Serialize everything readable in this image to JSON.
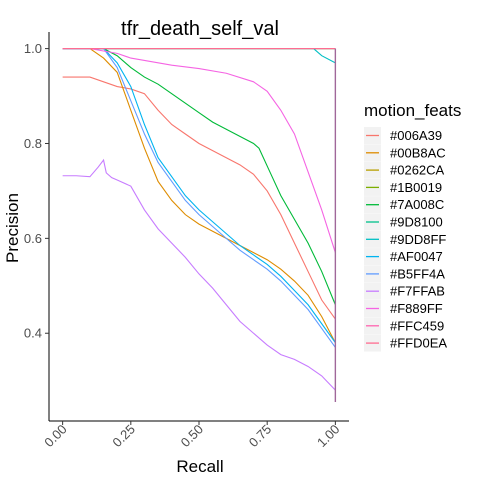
{
  "chart_data": {
    "type": "line",
    "title": "tfr_death_self_val",
    "xlabel": "Recall",
    "ylabel": "Precision",
    "xlim": [
      -0.05,
      1.05
    ],
    "ylim": [
      0.215,
      1.035
    ],
    "xticks": [
      0.0,
      0.25,
      0.5,
      0.75,
      1.0
    ],
    "xtick_labels": [
      "0.00",
      "0.25",
      "0.50",
      "0.75",
      "1.00"
    ],
    "yticks": [
      0.4,
      0.6,
      0.8,
      1.0
    ],
    "ytick_labels": [
      "0.4",
      "0.6",
      "0.8",
      "1.0"
    ],
    "grid": false,
    "legend": {
      "title": "motion_feats",
      "position": "right"
    },
    "series": [
      {
        "name": "#006A39",
        "color": "#F8766D",
        "x": [
          0.0,
          0.05,
          0.1,
          0.15,
          0.2,
          0.25,
          0.3,
          0.35,
          0.4,
          0.45,
          0.5,
          0.55,
          0.6,
          0.65,
          0.7,
          0.75,
          0.8,
          0.85,
          0.9,
          0.95,
          1.0
        ],
        "y": [
          0.94,
          0.94,
          0.94,
          0.93,
          0.92,
          0.915,
          0.905,
          0.87,
          0.84,
          0.82,
          0.8,
          0.785,
          0.77,
          0.755,
          0.735,
          0.7,
          0.65,
          0.59,
          0.53,
          0.47,
          0.43
        ]
      },
      {
        "name": "#00B8AC",
        "color": "#DE8C00",
        "x": [
          0.0,
          0.05,
          0.1,
          0.15,
          0.2,
          0.25,
          0.3,
          0.35,
          0.4,
          0.45,
          0.5,
          0.55,
          0.6,
          0.65,
          0.7,
          0.75,
          0.8,
          0.85,
          0.9,
          0.95,
          1.0
        ],
        "y": [
          1.0,
          1.0,
          1.0,
          0.98,
          0.95,
          0.87,
          0.79,
          0.72,
          0.68,
          0.65,
          0.63,
          0.615,
          0.6,
          0.585,
          0.57,
          0.555,
          0.535,
          0.51,
          0.48,
          0.435,
          0.38
        ]
      },
      {
        "name": "#0262CA",
        "color": "#B79F00",
        "x": [
          0.0,
          0.25,
          0.5,
          0.75,
          0.9,
          1.0
        ],
        "y": [
          1.0,
          1.0,
          1.0,
          1.0,
          1.0,
          1.0
        ]
      },
      {
        "name": "#1B0019",
        "color": "#7CAE00",
        "x": [
          0.0,
          0.25,
          0.5,
          0.75,
          0.9,
          1.0
        ],
        "y": [
          1.0,
          1.0,
          1.0,
          1.0,
          1.0,
          1.0
        ]
      },
      {
        "name": "#7A008C",
        "color": "#00BA38",
        "x": [
          0.0,
          0.1,
          0.15,
          0.2,
          0.25,
          0.3,
          0.35,
          0.4,
          0.45,
          0.5,
          0.55,
          0.6,
          0.65,
          0.7,
          0.72,
          0.76,
          0.8,
          0.85,
          0.9,
          0.95,
          1.0
        ],
        "y": [
          1.0,
          1.0,
          1.0,
          0.985,
          0.96,
          0.94,
          0.925,
          0.905,
          0.885,
          0.865,
          0.845,
          0.83,
          0.815,
          0.8,
          0.79,
          0.74,
          0.69,
          0.64,
          0.59,
          0.53,
          0.46
        ]
      },
      {
        "name": "#9D8100",
        "color": "#00C08B",
        "x": [
          0.0,
          0.25,
          0.5,
          0.75,
          0.9,
          1.0
        ],
        "y": [
          1.0,
          1.0,
          1.0,
          1.0,
          1.0,
          1.0
        ]
      },
      {
        "name": "#9DD8FF",
        "color": "#00BFC4",
        "x": [
          0.0,
          0.5,
          0.92,
          0.95,
          1.0
        ],
        "y": [
          1.0,
          1.0,
          1.0,
          0.985,
          0.97
        ]
      },
      {
        "name": "#AF0047",
        "color": "#00B4F0",
        "x": [
          0.0,
          0.1,
          0.15,
          0.2,
          0.25,
          0.3,
          0.35,
          0.4,
          0.45,
          0.5,
          0.55,
          0.6,
          0.65,
          0.7,
          0.75,
          0.8,
          0.85,
          0.9,
          0.95,
          1.0
        ],
        "y": [
          1.0,
          1.0,
          1.0,
          0.97,
          0.92,
          0.84,
          0.77,
          0.73,
          0.69,
          0.66,
          0.635,
          0.61,
          0.585,
          0.565,
          0.545,
          0.52,
          0.49,
          0.46,
          0.42,
          0.38
        ]
      },
      {
        "name": "#B5FF4A",
        "color": "#619CFF",
        "x": [
          0.0,
          0.1,
          0.15,
          0.2,
          0.25,
          0.3,
          0.35,
          0.4,
          0.45,
          0.5,
          0.55,
          0.6,
          0.65,
          0.7,
          0.75,
          0.8,
          0.85,
          0.9,
          0.95,
          1.0
        ],
        "y": [
          1.0,
          1.0,
          1.0,
          0.96,
          0.89,
          0.82,
          0.76,
          0.72,
          0.68,
          0.65,
          0.625,
          0.6,
          0.575,
          0.555,
          0.535,
          0.51,
          0.48,
          0.45,
          0.41,
          0.37
        ]
      },
      {
        "name": "#F7FFAB",
        "color": "#C77CFF",
        "x": [
          0.0,
          0.05,
          0.1,
          0.13,
          0.15,
          0.16,
          0.18,
          0.2,
          0.25,
          0.3,
          0.35,
          0.4,
          0.45,
          0.5,
          0.55,
          0.6,
          0.65,
          0.7,
          0.75,
          0.8,
          0.85,
          0.9,
          0.95,
          1.0
        ],
        "y": [
          0.732,
          0.732,
          0.73,
          0.75,
          0.765,
          0.738,
          0.728,
          0.723,
          0.71,
          0.66,
          0.62,
          0.59,
          0.56,
          0.525,
          0.495,
          0.46,
          0.425,
          0.4,
          0.375,
          0.355,
          0.345,
          0.33,
          0.31,
          0.28
        ]
      },
      {
        "name": "#F889FF",
        "color": "#F564E3",
        "x": [
          0.0,
          0.1,
          0.15,
          0.2,
          0.25,
          0.3,
          0.4,
          0.5,
          0.6,
          0.7,
          0.75,
          0.8,
          0.85,
          0.9,
          0.95,
          1.0
        ],
        "y": [
          1.0,
          1.0,
          0.995,
          0.99,
          0.98,
          0.975,
          0.965,
          0.958,
          0.948,
          0.93,
          0.91,
          0.87,
          0.82,
          0.74,
          0.66,
          0.57
        ]
      },
      {
        "name": "#FFC459",
        "color": "#FF64B0",
        "x": [
          0.0,
          0.25,
          0.5,
          0.75,
          0.9,
          1.0
        ],
        "y": [
          1.0,
          1.0,
          1.0,
          1.0,
          1.0,
          1.0
        ]
      },
      {
        "name": "#FFD0EA",
        "color": "#FF6C91",
        "x": [
          0.0,
          0.25,
          0.5,
          0.75,
          0.9,
          1.0
        ],
        "y": [
          1.0,
          1.0,
          1.0,
          1.0,
          1.0,
          1.0
        ]
      }
    ]
  }
}
